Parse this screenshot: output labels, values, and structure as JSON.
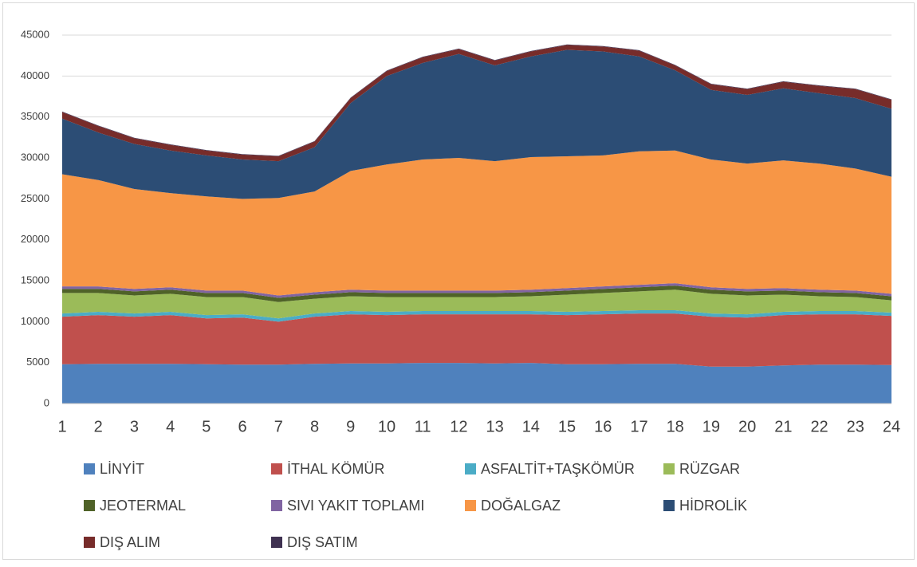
{
  "chart_data": {
    "type": "stacked_area",
    "categories": [
      "1",
      "2",
      "3",
      "4",
      "5",
      "6",
      "7",
      "8",
      "9",
      "10",
      "11",
      "12",
      "13",
      "14",
      "15",
      "16",
      "17",
      "18",
      "19",
      "20",
      "21",
      "22",
      "23",
      "24"
    ],
    "ylim": [
      0,
      45000
    ],
    "yticks": [
      0,
      5000,
      10000,
      15000,
      20000,
      25000,
      30000,
      35000,
      40000,
      45000
    ],
    "grid": true,
    "series": [
      {
        "name": "LİNYİT",
        "color": "#4f81bd",
        "values": [
          4800,
          4850,
          4850,
          4850,
          4800,
          4750,
          4750,
          4850,
          4900,
          4900,
          4950,
          4950,
          4900,
          4950,
          4800,
          4800,
          4850,
          4850,
          4500,
          4500,
          4650,
          4750,
          4750,
          4700
        ]
      },
      {
        "name": "İTHAL KÖMÜR",
        "color": "#c0504d",
        "values": [
          5800,
          5950,
          5750,
          5950,
          5600,
          5750,
          5250,
          5750,
          6000,
          5900,
          5950,
          5950,
          6000,
          5950,
          6000,
          6100,
          6150,
          6150,
          6100,
          6000,
          6150,
          6150,
          6150,
          6000
        ]
      },
      {
        "name": "ASFALTİT+TAŞKÖMÜR",
        "color": "#4bacc6",
        "values": [
          400,
          400,
          400,
          400,
          400,
          400,
          400,
          400,
          400,
          400,
          400,
          400,
          400,
          400,
          400,
          400,
          400,
          400,
          400,
          400,
          400,
          400,
          400,
          400
        ]
      },
      {
        "name": "RÜZGAR",
        "color": "#9bbb59",
        "values": [
          2500,
          2300,
          2200,
          2200,
          2200,
          2100,
          2000,
          1800,
          1800,
          1800,
          1700,
          1700,
          1700,
          1800,
          2100,
          2200,
          2300,
          2500,
          2400,
          2300,
          2100,
          1800,
          1700,
          1500
        ]
      },
      {
        "name": "JEOTERMAL",
        "color": "#4f6228",
        "values": [
          500,
          500,
          500,
          500,
          500,
          500,
          500,
          500,
          500,
          500,
          500,
          500,
          500,
          500,
          500,
          500,
          500,
          500,
          500,
          500,
          500,
          500,
          500,
          500
        ]
      },
      {
        "name": "SIVI YAKIT TOPLAMI",
        "color": "#8064a2",
        "values": [
          300,
          300,
          300,
          300,
          300,
          300,
          300,
          300,
          300,
          300,
          300,
          300,
          300,
          300,
          300,
          300,
          300,
          300,
          300,
          300,
          300,
          300,
          300,
          300
        ]
      },
      {
        "name": "DOĞALGAZ",
        "color": "#f79646",
        "values": [
          13700,
          13000,
          12200,
          11500,
          11500,
          11200,
          11900,
          12300,
          14500,
          15400,
          16000,
          16200,
          15800,
          16200,
          16100,
          16000,
          16300,
          16200,
          15600,
          15300,
          15600,
          15400,
          14900,
          14300
        ]
      },
      {
        "name": "HİDROLİK",
        "color": "#2c4d75",
        "values": [
          6800,
          5800,
          5500,
          5200,
          5000,
          4800,
          4500,
          5400,
          8300,
          10800,
          11800,
          12700,
          11700,
          12300,
          13000,
          12700,
          11600,
          9800,
          8500,
          8400,
          8800,
          8600,
          8600,
          8300
        ]
      },
      {
        "name": "DIŞ ALIM",
        "color": "#772c2a",
        "values": [
          800,
          800,
          700,
          700,
          600,
          600,
          600,
          700,
          600,
          600,
          700,
          600,
          600,
          600,
          600,
          600,
          700,
          600,
          700,
          700,
          800,
          900,
          1100,
          1100
        ]
      },
      {
        "name": "DIŞ SATIM",
        "color": "#3f3151",
        "values": [
          60,
          60,
          60,
          60,
          60,
          60,
          60,
          60,
          60,
          60,
          60,
          60,
          60,
          60,
          60,
          60,
          60,
          60,
          60,
          60,
          60,
          60,
          60,
          60
        ]
      }
    ]
  }
}
